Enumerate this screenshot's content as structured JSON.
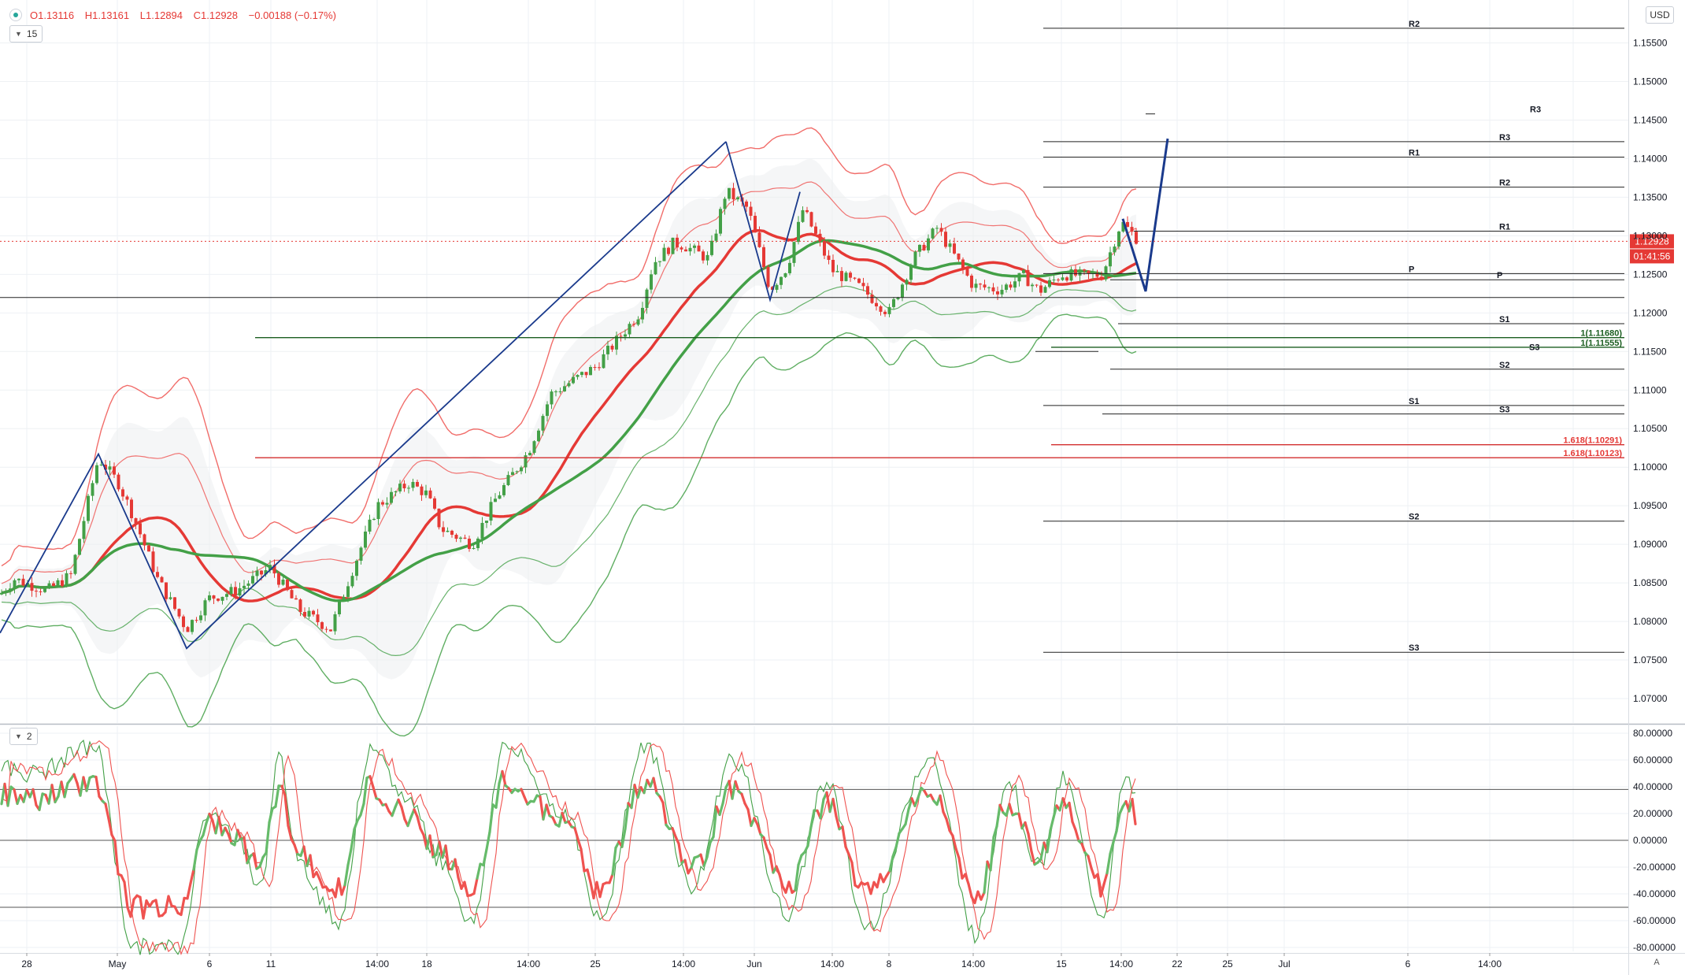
{
  "legend": {
    "open": "O1.13116",
    "high": "H1.13161",
    "low": "L1.12894",
    "close": "C1.12928",
    "change": "−0.00188 (−0.17%)"
  },
  "pane_badges": {
    "main": "15",
    "oscillator": "2"
  },
  "currency": "USD",
  "auto_button": "A",
  "price_label": {
    "value": "1.12928",
    "countdown": "01:41:56"
  },
  "chart_data": [
    {
      "type": "candlestick",
      "ylim": [
        1.066,
        1.159
      ],
      "y_ticks": [
        "1.15500",
        "1.15000",
        "1.14500",
        "1.14000",
        "1.13500",
        "1.13000",
        "1.12500",
        "1.12000",
        "1.11500",
        "1.11000",
        "1.10500",
        "1.10000",
        "1.09500",
        "1.09000",
        "1.08500",
        "1.08000",
        "1.07500",
        "1.07000"
      ],
      "x_ticks": [
        "28",
        "May",
        "6",
        "11",
        "14:00",
        "18",
        "14:00",
        "25",
        "14:00",
        "Jun",
        "14:00",
        "8",
        "14:00",
        "15",
        "14:00",
        "22",
        "25",
        "Jul",
        "6",
        "14:00"
      ],
      "last_price": 1.12928,
      "trend_lines": [
        {
          "name": "zigzag-up",
          "points": [
            [
              0,
              1.0785
            ],
            [
              125,
              1.1017
            ],
            [
              237,
              1.0765
            ],
            [
              922,
              1.1422
            ]
          ]
        },
        {
          "name": "zigzag-down",
          "points": [
            [
              922,
              1.1422
            ],
            [
              978,
              1.1217
            ],
            [
              1016,
              1.1357
            ]
          ]
        },
        {
          "name": "projection",
          "points": [
            [
              1426,
              1.1322
            ],
            [
              1455,
              1.1228
            ],
            [
              1483,
              1.1426
            ]
          ]
        }
      ],
      "horizontal_levels": [
        {
          "label": "R2",
          "price": 1.1569,
          "color": "black"
        },
        {
          "label": "R3",
          "price": 1.1458,
          "color": "black"
        },
        {
          "label": "R3",
          "price": 1.1422,
          "color": "black"
        },
        {
          "label": "R1",
          "price": 1.1402,
          "color": "black"
        },
        {
          "label": "R2",
          "price": 1.1363,
          "color": "black"
        },
        {
          "label": "R1",
          "price": 1.1306,
          "color": "black"
        },
        {
          "label": "P",
          "price": 1.1251,
          "color": "black"
        },
        {
          "label": "P",
          "price": 1.1243,
          "color": "black"
        },
        {
          "label": "",
          "price": 1.122,
          "color": "black"
        },
        {
          "label": "S1",
          "price": 1.1186,
          "color": "black"
        },
        {
          "label": "1(1.11680)",
          "price": 1.1168,
          "color": "green"
        },
        {
          "label": "1(1.11555)",
          "price": 1.11555,
          "color": "green"
        },
        {
          "label": "S3",
          "price": 1.115,
          "color": "black"
        },
        {
          "label": "S2",
          "price": 1.1127,
          "color": "black"
        },
        {
          "label": "S1",
          "price": 1.108,
          "color": "black"
        },
        {
          "label": "S3",
          "price": 1.1069,
          "color": "black"
        },
        {
          "label": "1.618(1.10291)",
          "price": 1.10291,
          "color": "red"
        },
        {
          "label": "1.618(1.10123)",
          "price": 1.10123,
          "color": "red"
        },
        {
          "label": "S2",
          "price": 1.093,
          "color": "black"
        },
        {
          "label": "S3",
          "price": 1.076,
          "color": "black"
        }
      ]
    },
    {
      "type": "line",
      "name": "oscillator",
      "ylim": [
        -92,
        84
      ],
      "y_ticks": [
        "80.00000",
        "60.00000",
        "40.00000",
        "20.00000",
        "0.00000",
        "-20.00000",
        "-40.00000",
        "-60.00000",
        "-80.00000"
      ],
      "reference_lines": [
        38,
        0,
        -50
      ]
    }
  ],
  "colors": {
    "up": "#43a047",
    "down": "#e53935",
    "pivot": "#1a3a8c",
    "grid": "#eef1f4",
    "text": "#131722"
  }
}
